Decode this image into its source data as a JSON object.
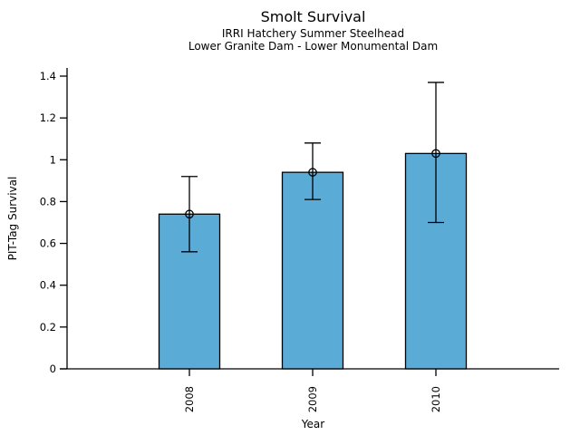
{
  "chart_data": {
    "type": "bar",
    "title": "Smolt Survival",
    "subtitles": [
      "IRRI Hatchery Summer Steelhead",
      "Lower Granite Dam - Lower Monumental Dam"
    ],
    "categories": [
      "2008",
      "2009",
      "2010"
    ],
    "values": [
      0.74,
      0.94,
      1.03
    ],
    "error_low": [
      0.56,
      0.81,
      0.7
    ],
    "error_high": [
      0.92,
      1.08,
      1.37
    ],
    "xlabel": "Year",
    "ylabel": "PIT-Tag Survival",
    "ylim": [
      0,
      1.4
    ],
    "yticks": [
      0,
      0.2,
      0.4,
      0.6,
      0.8,
      1,
      1.2,
      1.4
    ],
    "ytick_labels": [
      "0",
      "0.2",
      "0.4",
      "0.6",
      "0.8",
      "1",
      "1.2",
      "1.4"
    ],
    "bar_color": "#5BABD7",
    "bar_border": "#000000",
    "axis_color": "#000000",
    "marker": "open-circle",
    "grid": false,
    "legend": false
  }
}
